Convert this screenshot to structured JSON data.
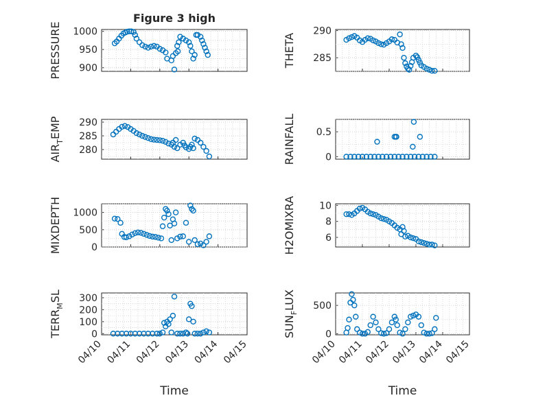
{
  "chart_data": [
    {
      "type": "scatter",
      "title": "Figure 3 high",
      "ylabel": "PRESSURE",
      "ylim": [
        890,
        1005
      ],
      "yticks": [
        "900",
        "950",
        "1000"
      ],
      "xlim": [
        0,
        5
      ],
      "x": [
        0.45,
        0.52,
        0.6,
        0.68,
        0.75,
        0.82,
        0.88,
        0.95,
        1.02,
        1.1,
        1.15,
        1.2,
        1.3,
        1.4,
        1.5,
        1.6,
        1.7,
        1.8,
        1.9,
        2.0,
        2.1,
        2.2,
        2.25,
        2.4,
        2.45,
        2.5,
        2.55,
        2.6,
        2.62,
        2.65,
        2.7,
        2.8,
        2.9,
        3.0,
        3.05,
        3.1,
        3.15,
        3.2,
        3.25,
        3.3,
        3.4,
        3.45,
        3.5,
        3.55,
        3.6,
        3.65
      ],
      "y": [
        967,
        972,
        980,
        988,
        994,
        997,
        999,
        1000,
        1000,
        998,
        990,
        980,
        970,
        962,
        958,
        955,
        958,
        960,
        958,
        952,
        948,
        942,
        925,
        920,
        932,
        895,
        940,
        960,
        945,
        970,
        985,
        980,
        975,
        970,
        960,
        945,
        925,
        935,
        990,
        990,
        985,
        975,
        965,
        955,
        945,
        935
      ]
    },
    {
      "type": "scatter",
      "ylabel": "THETA",
      "ylim": [
        282.5,
        290.2
      ],
      "yticks": [
        "285",
        "290"
      ],
      "xlim": [
        0,
        5
      ],
      "x": [
        0.4,
        0.5,
        0.6,
        0.7,
        0.8,
        0.9,
        1.0,
        1.1,
        1.2,
        1.3,
        1.4,
        1.5,
        1.6,
        1.7,
        1.8,
        1.9,
        2.0,
        2.1,
        2.2,
        2.3,
        2.4,
        2.45,
        2.5,
        2.55,
        2.6,
        2.65,
        2.7,
        2.75,
        2.8,
        2.85,
        2.9,
        3.0,
        3.05,
        3.1,
        3.15,
        3.2,
        3.3,
        3.4,
        3.5,
        3.6,
        3.7
      ],
      "y": [
        288.3,
        288.6,
        288.8,
        289.0,
        288.7,
        288.2,
        287.9,
        288.3,
        288.6,
        288.5,
        288.2,
        288.0,
        287.7,
        287.5,
        287.4,
        287.7,
        288.0,
        288.4,
        288.3,
        287.8,
        289.3,
        287.5,
        286.8,
        285.0,
        284.0,
        283.4,
        283.0,
        282.8,
        283.5,
        284.2,
        285.0,
        285.4,
        285.1,
        284.6,
        284.1,
        283.6,
        283.3,
        283.0,
        282.8,
        282.6,
        282.6
      ]
    },
    {
      "type": "scatter",
      "ylabel": "AIR_T_EMP",
      "ylabel_main": "AIR",
      "ylabel_sub": "T",
      "ylabel_tail": "EMP",
      "ylim": [
        276.5,
        291
      ],
      "yticks": [
        "280",
        "285",
        "290"
      ],
      "xlim": [
        0,
        5
      ],
      "x": [
        0.4,
        0.5,
        0.6,
        0.7,
        0.8,
        0.9,
        1.0,
        1.1,
        1.2,
        1.3,
        1.4,
        1.5,
        1.6,
        1.7,
        1.8,
        1.9,
        2.0,
        2.1,
        2.2,
        2.3,
        2.4,
        2.45,
        2.5,
        2.55,
        2.6,
        2.7,
        2.8,
        2.85,
        2.9,
        3.0,
        3.05,
        3.1,
        3.15,
        3.2,
        3.3,
        3.4,
        3.5,
        3.6,
        3.7
      ],
      "y": [
        285.5,
        286.5,
        287.5,
        288.3,
        288.6,
        288.2,
        287.5,
        286.8,
        286.0,
        285.5,
        285.0,
        284.6,
        284.2,
        283.8,
        283.6,
        283.5,
        283.4,
        283.2,
        282.8,
        282.2,
        281.8,
        282.5,
        281.0,
        283.5,
        280.5,
        281.8,
        282.5,
        281.5,
        280.8,
        280.2,
        281.0,
        281.8,
        280.5,
        284.0,
        283.5,
        282.5,
        281.0,
        279.5,
        277.5
      ]
    },
    {
      "type": "scatter",
      "ylabel": "RAINFALL",
      "ylim": [
        -0.05,
        0.75
      ],
      "yticks": [
        "0",
        "0.5"
      ],
      "xlim": [
        0,
        5
      ],
      "x": [
        0.4,
        0.55,
        0.7,
        0.85,
        1.0,
        1.15,
        1.3,
        1.45,
        1.6,
        1.75,
        1.9,
        2.05,
        2.2,
        2.35,
        2.5,
        2.65,
        2.8,
        2.95,
        3.1,
        3.25,
        3.4,
        3.55,
        3.7,
        1.55,
        2.2,
        2.25,
        2.27,
        2.88,
        2.92,
        3.15
      ],
      "y": [
        0,
        0,
        0,
        0,
        0,
        0,
        0,
        0,
        0,
        0,
        0,
        0,
        0,
        0,
        0,
        0,
        0,
        0,
        0,
        0,
        0,
        0,
        0,
        0.3,
        0.4,
        0.4,
        0.4,
        0.2,
        0.7,
        0.4
      ]
    },
    {
      "type": "scatter",
      "ylabel": "MIXDEPTH",
      "ylim": [
        0,
        1250
      ],
      "yticks": [
        "0",
        "500",
        "1000"
      ],
      "xlim": [
        0,
        5
      ],
      "x": [
        0.45,
        0.55,
        0.65,
        0.7,
        0.78,
        0.85,
        0.95,
        1.05,
        1.15,
        1.25,
        1.35,
        1.45,
        1.55,
        1.65,
        1.75,
        1.85,
        1.95,
        2.05,
        2.1,
        2.15,
        2.2,
        2.25,
        2.3,
        2.35,
        2.4,
        2.45,
        2.5,
        2.55,
        2.6,
        2.7,
        2.8,
        2.9,
        3.0,
        3.05,
        3.1,
        3.15,
        3.2,
        3.3,
        3.4,
        3.5,
        3.6,
        3.7
      ],
      "y": [
        820,
        810,
        700,
        380,
        290,
        280,
        310,
        360,
        400,
        420,
        410,
        380,
        350,
        320,
        300,
        290,
        270,
        250,
        600,
        850,
        1100,
        1050,
        950,
        620,
        200,
        800,
        680,
        1000,
        250,
        300,
        310,
        700,
        150,
        1200,
        1100,
        1050,
        200,
        80,
        100,
        50,
        150,
        310
      ]
    },
    {
      "type": "scatter",
      "ylabel": "H2OMIXRA",
      "ylim": [
        4.8,
        10.2
      ],
      "yticks": [
        "6",
        "8",
        "10"
      ],
      "xlim": [
        0,
        5
      ],
      "x": [
        0.4,
        0.5,
        0.6,
        0.7,
        0.8,
        0.9,
        1.0,
        1.1,
        1.2,
        1.3,
        1.4,
        1.5,
        1.6,
        1.7,
        1.8,
        1.9,
        2.0,
        2.1,
        2.2,
        2.3,
        2.4,
        2.45,
        2.5,
        2.55,
        2.6,
        2.7,
        2.8,
        2.9,
        3.0,
        3.1,
        3.2,
        3.3,
        3.4,
        3.5,
        3.6,
        3.7
      ],
      "y": [
        8.9,
        8.9,
        8.8,
        9.0,
        9.3,
        9.6,
        9.7,
        9.5,
        9.2,
        9.0,
        8.9,
        8.8,
        8.6,
        8.4,
        8.3,
        8.2,
        8.0,
        7.8,
        7.5,
        7.2,
        7.0,
        6.4,
        7.3,
        6.8,
        6.1,
        6.2,
        6.0,
        5.9,
        5.8,
        5.5,
        5.4,
        5.3,
        5.2,
        5.1,
        5.1,
        5.0
      ]
    },
    {
      "type": "scatter",
      "ylabel": "TERR_M_SL",
      "ylabel_main": "TERR",
      "ylabel_sub": "M",
      "ylabel_tail": "SL",
      "ylim": [
        -10,
        340
      ],
      "yticks": [
        "0",
        "100",
        "200",
        "300"
      ],
      "xlim": [
        0,
        5
      ],
      "x": [
        0.4,
        0.55,
        0.7,
        0.85,
        1.0,
        1.15,
        1.3,
        1.45,
        1.6,
        1.75,
        1.9,
        2.0,
        2.1,
        2.15,
        2.2,
        2.25,
        2.3,
        2.35,
        2.4,
        2.45,
        2.5,
        2.6,
        2.7,
        2.8,
        2.9,
        2.95,
        3.0,
        3.05,
        3.1,
        3.15,
        3.2,
        3.3,
        3.4,
        3.5,
        3.6,
        3.7
      ],
      "y": [
        0,
        0,
        0,
        0,
        0,
        0,
        0,
        0,
        0,
        0,
        0,
        0,
        10,
        90,
        60,
        100,
        80,
        120,
        10,
        150,
        310,
        0,
        0,
        0,
        10,
        0,
        120,
        250,
        230,
        100,
        0,
        0,
        0,
        10,
        20,
        10
      ]
    },
    {
      "type": "scatter",
      "ylabel": "SUN_F_LUX",
      "ylabel_main": "SUN",
      "ylabel_sub": "F",
      "ylabel_tail": "LUX",
      "ylim": [
        -20,
        720
      ],
      "yticks": [
        "0",
        "500"
      ],
      "xlim": [
        0,
        5
      ],
      "x": [
        0.4,
        0.45,
        0.5,
        0.55,
        0.6,
        0.65,
        0.7,
        0.75,
        0.8,
        0.9,
        1.0,
        1.1,
        1.2,
        1.3,
        1.4,
        1.5,
        1.6,
        1.7,
        1.8,
        1.9,
        2.0,
        2.1,
        2.2,
        2.25,
        2.3,
        2.4,
        2.5,
        2.6,
        2.7,
        2.8,
        2.9,
        3.0,
        3.1,
        3.2,
        3.3,
        3.4,
        3.5,
        3.6,
        3.7,
        3.75
      ],
      "y": [
        20,
        100,
        250,
        550,
        700,
        600,
        500,
        300,
        80,
        20,
        0,
        0,
        30,
        150,
        300,
        200,
        80,
        10,
        0,
        10,
        80,
        200,
        300,
        250,
        150,
        20,
        0,
        80,
        200,
        300,
        320,
        340,
        300,
        150,
        20,
        0,
        0,
        10,
        80,
        280
      ]
    }
  ],
  "xticks": [
    "04/10",
    "04/11",
    "04/12",
    "04/13",
    "04/14",
    "04/15"
  ],
  "xlabel": "Time",
  "colors": {
    "marker": "#0072BD",
    "axis": "#262626",
    "grid": "#d0d0d0"
  }
}
